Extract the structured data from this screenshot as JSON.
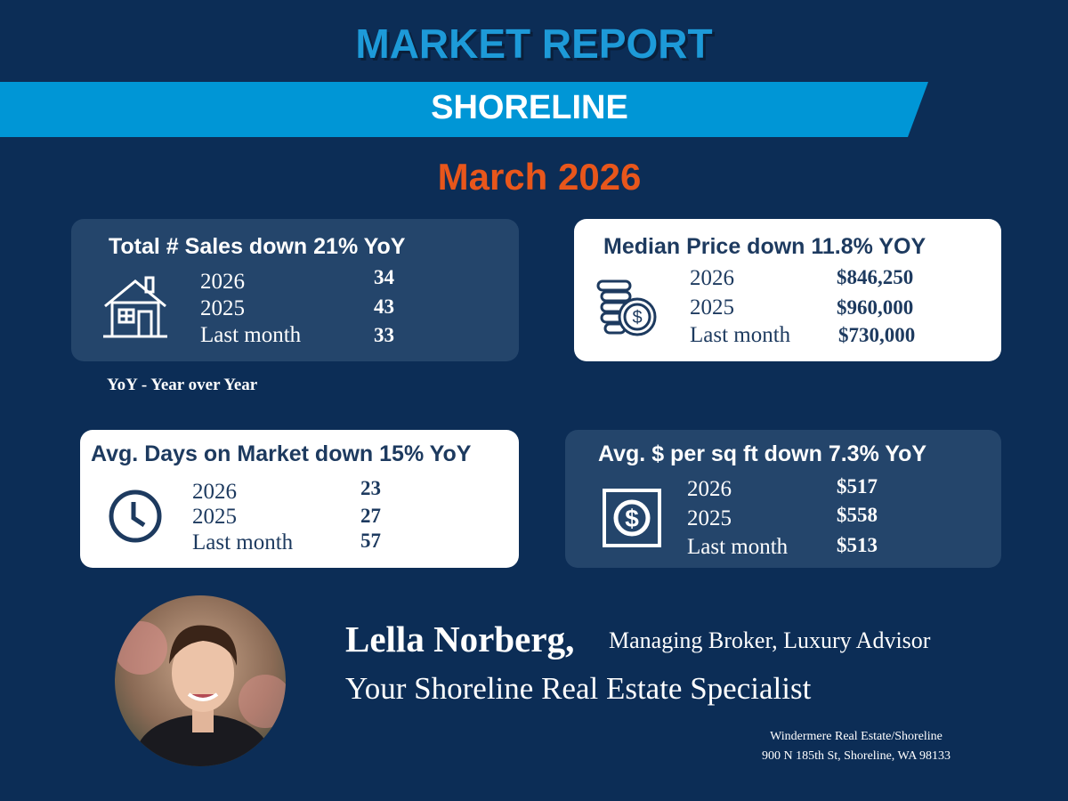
{
  "header": {
    "title": "MARKET REPORT",
    "area": "SHORELINE",
    "period": "March 2026"
  },
  "cards": [
    {
      "title": "Total # Sales down 21% YoY",
      "rows": [
        {
          "label": "2026",
          "value": "34"
        },
        {
          "label": "2025",
          "value": "43"
        },
        {
          "label": "Last month",
          "value": "33"
        }
      ]
    },
    {
      "title": "Median Price down 11.8% YOY",
      "rows": [
        {
          "label": "2026",
          "value": "$846,250"
        },
        {
          "label": "2025",
          "value": "$960,000"
        },
        {
          "label": "Last month",
          "value": "$730,000"
        }
      ]
    },
    {
      "title": "Avg. Days on Market down 15% YoY",
      "rows": [
        {
          "label": "2026",
          "value": "23"
        },
        {
          "label": "2025",
          "value": "27"
        },
        {
          "label": "Last month",
          "value": "57"
        }
      ]
    },
    {
      "title": "Avg. $ per sq ft down 7.3% YoY",
      "rows": [
        {
          "label": "2026",
          "value": "$517"
        },
        {
          "label": "2025",
          "value": "$558"
        },
        {
          "label": "Last month",
          "value": "$513"
        }
      ]
    }
  ],
  "note": "YoY - Year over Year",
  "agent": {
    "name": "Lella Norberg,",
    "role": "Managing Broker, Luxury Advisor",
    "tagline": "Your Shoreline Real Estate Specialist",
    "company": "Windermere Real Estate/Shoreline",
    "address": "900 N 185th St, Shoreline, WA 98133"
  }
}
